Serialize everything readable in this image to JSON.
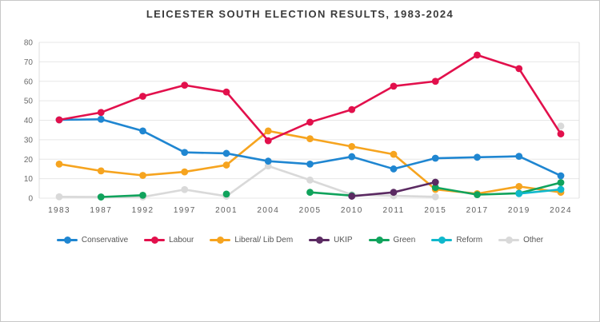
{
  "title": "LEICESTER SOUTH ELECTION RESULTS, 1983-2024",
  "chart_data": {
    "type": "line",
    "title": "LEICESTER SOUTH ELECTION RESULTS, 1983-2024",
    "xlabel": "",
    "ylabel": "",
    "ylim": [
      0,
      80
    ],
    "yticks": [
      0,
      10,
      20,
      30,
      40,
      50,
      60,
      70,
      80
    ],
    "grid": true,
    "legend_position": "bottom",
    "categories": [
      "1983",
      "1987",
      "1992",
      "1997",
      "2001",
      "2004",
      "2005",
      "2010",
      "2011",
      "2015",
      "2017",
      "2019",
      "2024"
    ],
    "series": [
      {
        "name": "Conservative",
        "color": "#1f86d1",
        "z": 5,
        "values": [
          40.2,
          40.5,
          34.5,
          23.5,
          23.0,
          19.0,
          17.5,
          21.3,
          15.0,
          20.5,
          21.0,
          21.5,
          11.5
        ]
      },
      {
        "name": "Labour",
        "color": "#e2104c",
        "z": 6,
        "values": [
          40.2,
          44.0,
          52.3,
          58.0,
          54.5,
          29.5,
          39.0,
          45.5,
          57.5,
          60.0,
          73.5,
          66.5,
          33.0
        ]
      },
      {
        "name": "Liberal/ Lib Dem",
        "color": "#f6a41f",
        "z": 1,
        "values": [
          17.5,
          14.0,
          11.7,
          13.5,
          17.0,
          34.5,
          30.5,
          26.5,
          22.5,
          4.5,
          2.3,
          6.0,
          3.0
        ]
      },
      {
        "name": "UKIP",
        "color": "#5b2a62",
        "z": 4,
        "values": [
          null,
          null,
          null,
          null,
          null,
          null,
          null,
          1.0,
          3.0,
          8.2,
          null,
          null,
          null
        ]
      },
      {
        "name": "Green",
        "color": "#10a35c",
        "z": 2,
        "values": [
          null,
          0.6,
          1.5,
          null,
          2.1,
          null,
          3.0,
          1.3,
          null,
          5.5,
          1.8,
          2.5,
          8.0
        ]
      },
      {
        "name": "Reform",
        "color": "#0fb8cc",
        "z": 3,
        "values": [
          null,
          null,
          null,
          null,
          null,
          null,
          null,
          null,
          null,
          null,
          null,
          2.3,
          4.5
        ]
      },
      {
        "name": "Other",
        "color": "#d9d9d9",
        "z": 0,
        "values": [
          0.7,
          0.6,
          0.6,
          4.4,
          1.0,
          16.5,
          9.3,
          1.8,
          1.2,
          0.7,
          null,
          null,
          37.0
        ]
      }
    ]
  },
  "style": {
    "gridline_color": "#e7e7e7",
    "plot_border_color": "#dcdcdc",
    "line_width": 2.6,
    "marker_radius": 4.4
  }
}
